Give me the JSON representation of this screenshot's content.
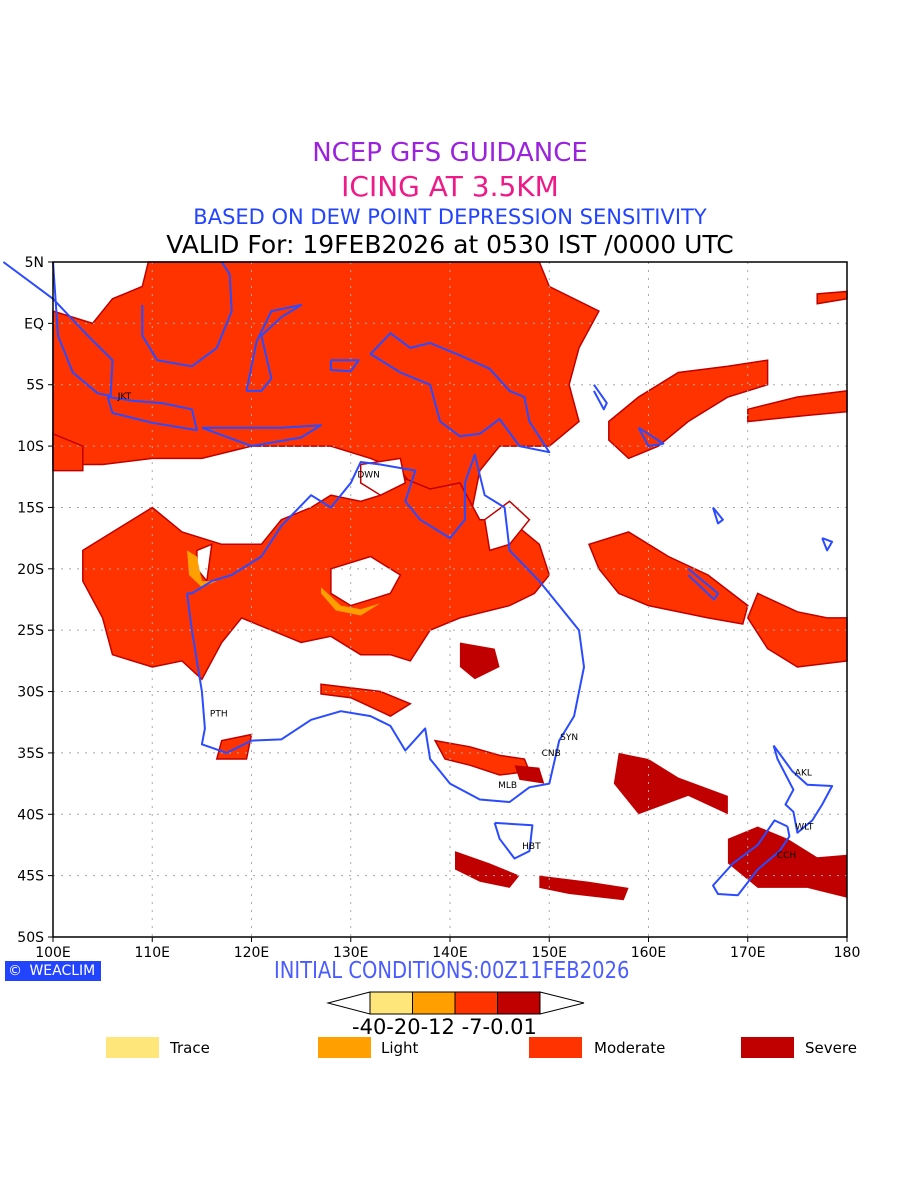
{
  "titles": {
    "line1": "NCEP GFS GUIDANCE",
    "line2": "ICING AT 3.5KM",
    "line3": "BASED ON DEW POINT DEPRESSION SENSITIVITY",
    "line4": "VALID For: 19FEB2026 at 0530 IST /0000 UTC"
  },
  "map": {
    "lon_range": [
      100,
      180
    ],
    "lat_range": [
      -50,
      5
    ],
    "lat_ticks": [
      "5N",
      "EQ",
      "5S",
      "10S",
      "15S",
      "20S",
      "25S",
      "30S",
      "35S",
      "40S",
      "45S",
      "50S"
    ],
    "lon_ticks": [
      "100E",
      "110E",
      "120E",
      "130E",
      "140E",
      "150E",
      "160E",
      "170E",
      "180"
    ],
    "cities": [
      {
        "code": "JKT",
        "lon": 107.2,
        "lat": -5.9
      },
      {
        "code": "DWN",
        "lon": 131.8,
        "lat": -12.3
      },
      {
        "code": "PTH",
        "lon": 116.7,
        "lat": -31.8
      },
      {
        "code": "SYN",
        "lon": 152.0,
        "lat": -33.7
      },
      {
        "code": "CNB",
        "lon": 150.2,
        "lat": -35.0
      },
      {
        "code": "MLB",
        "lon": 145.8,
        "lat": -37.6
      },
      {
        "code": "HBT",
        "lon": 148.2,
        "lat": -42.6
      },
      {
        "code": "AKL",
        "lon": 175.6,
        "lat": -36.6
      },
      {
        "code": "WLT",
        "lon": 175.7,
        "lat": -41.0
      },
      {
        "code": "CCH",
        "lon": 173.9,
        "lat": -43.3
      }
    ],
    "coast_color": "#2a4bff"
  },
  "footer": {
    "logo": "WEACLIM",
    "initial_conditions": "INITIAL CONDITIONS:00Z11FEB2026"
  },
  "colorbar": {
    "labels": "-40-20-12 -7-0.01",
    "colors": [
      "#ffe67a",
      "#ff9f00",
      "#ff3300",
      "#c00000"
    ]
  },
  "legend": [
    {
      "label": "Trace",
      "color": "#ffe67a"
    },
    {
      "label": "Light",
      "color": "#ff9f00"
    },
    {
      "label": "Moderate",
      "color": "#ff3300"
    },
    {
      "label": "Severe",
      "color": "#c00000"
    }
  ]
}
